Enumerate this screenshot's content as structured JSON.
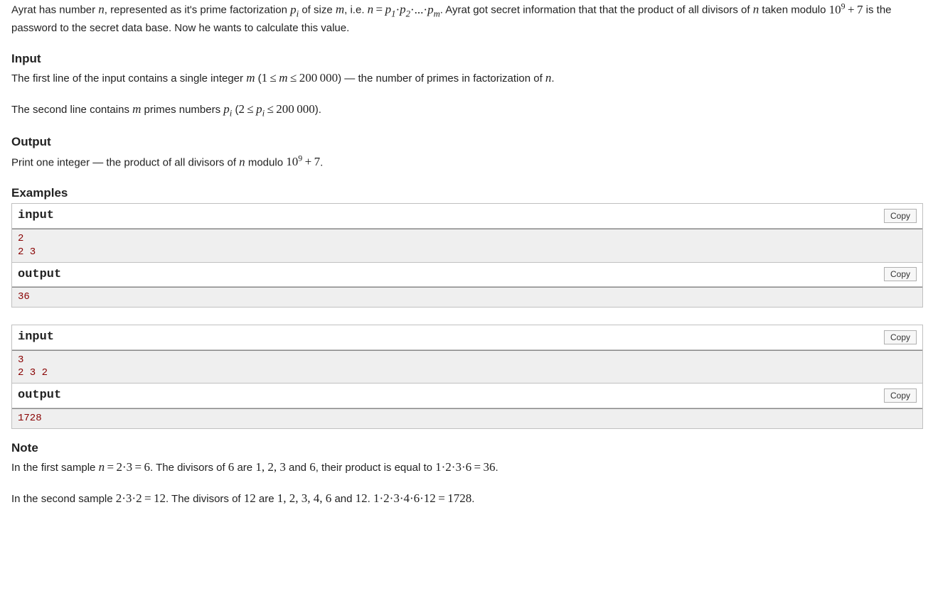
{
  "intro_html": "Ayrat has number <span class='math-i'>n</span>, represented as it's prime factorization <span class='math-i'>p<sub>i</sub></span> of size <span class='math-i'>m</span>, i.e. <span class='math-i'>n</span><span class='math-r'>&thinsp;=&thinsp;</span><span class='math-i'>p</span><span class='math-r'><sub>1</sub>&middot;</span><span class='math-i'>p</span><span class='math-r'><sub>2</sub>&middot;...&middot;</span><span class='math-i'>p<sub>m</sub></span>. Ayrat got secret information that that the product of all divisors of <span class='math-i'>n</span> taken modulo <span class='math-r'>10<sup>9</sup>&thinsp;+&thinsp;7</span> is the password to the secret data base. Now he wants to calculate this value.",
  "sections": {
    "input_title": "Input",
    "input_para1_html": "The first line of the input contains a single integer <span class='math-i'>m</span> (<span class='math-r'>1&thinsp;&le;&thinsp;</span><span class='math-i'>m</span><span class='math-r'>&thinsp;&le;&thinsp;200&thinsp;000</span>) &mdash; the number of primes in factorization of <span class='math-i'>n</span>.",
    "input_para2_html": "The second line contains <span class='math-i'>m</span> primes numbers <span class='math-i'>p<sub>i</sub></span> (<span class='math-r'>2&thinsp;&le;&thinsp;</span><span class='math-i'>p<sub>i</sub></span><span class='math-r'>&thinsp;&le;&thinsp;200&thinsp;000</span>).",
    "output_title": "Output",
    "output_para_html": "Print one integer &mdash; the product of all divisors of <span class='math-i'>n</span> modulo <span class='math-r'>10<sup>9</sup>&thinsp;+&thinsp;7</span>.",
    "examples_title": "Examples",
    "note_title": "Note",
    "note_para1_html": "In the first sample <span class='math-i'>n</span><span class='math-r'>&thinsp;=&thinsp;2&middot;3&thinsp;=&thinsp;6</span>. The divisors of <span class='math-r'>6</span> are <span class='math-r'>1, 2, 3</span> and <span class='math-r'>6</span>, their product is equal to <span class='math-r'>1&middot;2&middot;3&middot;6&thinsp;=&thinsp;36</span>.",
    "note_para2_html": "In the second sample <span class='math-r'>2&middot;3&middot;2&thinsp;=&thinsp;12</span>. The divisors of <span class='math-r'>12</span> are <span class='math-r'>1, 2, 3, 4, 6</span> and <span class='math-r'>12</span>. <span class='math-r'>1&middot;2&middot;3&middot;4&middot;6&middot;12&thinsp;=&thinsp;1728</span>."
  },
  "labels": {
    "input": "input",
    "output": "output",
    "copy": "Copy"
  },
  "examples": [
    {
      "input": "2\n2 3",
      "output": "36"
    },
    {
      "input": "3\n2 3 2",
      "output": "1728"
    }
  ]
}
